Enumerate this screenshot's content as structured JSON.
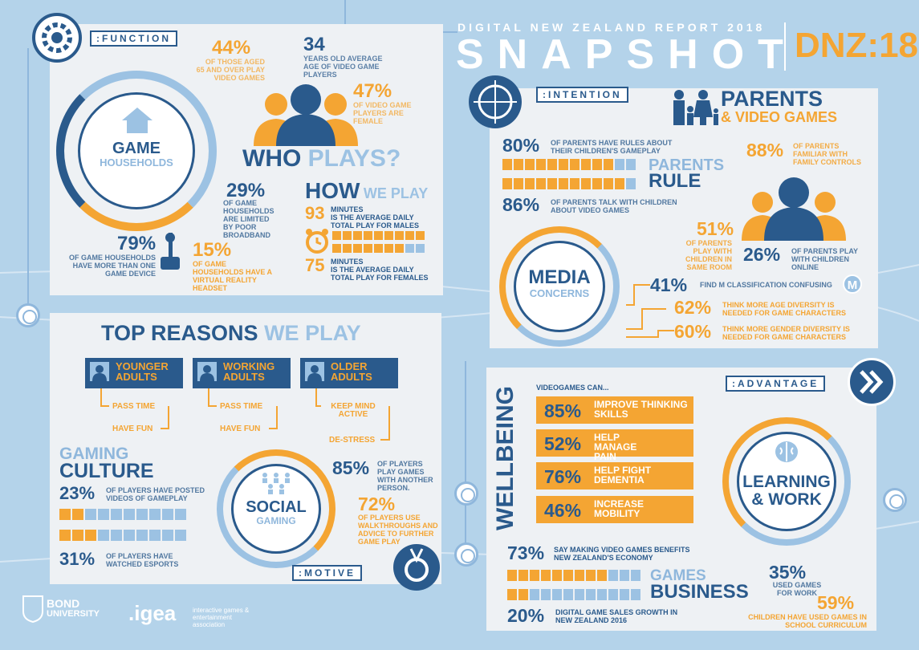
{
  "header": {
    "subtitle": "DIGITAL NEW ZEALAND REPORT 2018",
    "title": "SNAPSHOT",
    "code": "DNZ:18"
  },
  "function": {
    "label": ":FUNCTION",
    "ring_title": "GAME",
    "ring_sub": "HOUSEHOLDS",
    "stat_44": "44%",
    "text_44": "OF THOSE AGED 65 AND OVER PLAY VIDEO GAMES",
    "stat_34": "34",
    "text_34": "YEARS OLD AVERAGE AGE OF VIDEO GAME PLAYERS",
    "stat_47": "47%",
    "text_47": "OF VIDEO GAME PLAYERS ARE FEMALE",
    "who_1": "WHO",
    "who_2": "PLAYS?",
    "stat_29": "29%",
    "text_29": "OF GAME HOUSEHOLDS ARE LIMITED BY POOR BROADBAND",
    "stat_79": "79%",
    "text_79": "OF GAME HOUSEHOLDS HAVE MORE THAN ONE GAME DEVICE",
    "stat_15": "15%",
    "text_15": "OF GAME HOUSEHOLDS HAVE A VIRTUAL REALITY HEADSET",
    "how_1": "HOW",
    "how_2": "WE PLAY",
    "stat_93": "93",
    "text_93a": "MINUTES",
    "text_93b": "IS THE AVERAGE DAILY TOTAL PLAY FOR MALES",
    "stat_75": "75",
    "text_75a": "MINUTES",
    "text_75b": "IS THE AVERAGE DAILY TOTAL PLAY FOR FEMALES"
  },
  "motive": {
    "label": ":MOTIVE",
    "title_1": "TOP REASONS",
    "title_2": "WE PLAY",
    "groups": [
      {
        "title_1": "YOUNGER",
        "title_2": "ADULTS",
        "r1": "PASS TIME",
        "r2": "HAVE FUN"
      },
      {
        "title_1": "WORKING",
        "title_2": "ADULTS",
        "r1": "PASS TIME",
        "r2": "HAVE FUN"
      },
      {
        "title_1": "OLDER",
        "title_2": "ADULTS",
        "r1": "KEEP MIND ACTIVE",
        "r2": "DE-STRESS"
      }
    ],
    "culture_1": "GAMING",
    "culture_2": "CULTURE",
    "stat_23": "23%",
    "text_23": "OF PLAYERS HAVE POSTED VIDEOS OF GAMEPLAY",
    "stat_31": "31%",
    "text_31": "OF PLAYERS HAVE WATCHED ESPORTS",
    "social_1": "SOCIAL",
    "social_2": "GAMING",
    "stat_85": "85%",
    "text_85": "OF PLAYERS PLAY GAMES WITH ANOTHER PERSON.",
    "stat_72": "72%",
    "text_72": "OF PLAYERS USE WALKTHROUGHS AND ADVICE TO FURTHER GAME PLAY"
  },
  "intention": {
    "label": ":INTENTION",
    "parents_1": "PARENTS",
    "parents_2": "& VIDEO GAMES",
    "stat_80": "80%",
    "text_80": "OF PARENTS HAVE RULES ABOUT THEIR CHILDREN'S GAMEPLAY",
    "rule_1": "PARENTS",
    "rule_2": "RULE",
    "stat_86": "86%",
    "text_86": "OF PARENTS TALK WITH CHILDREN ABOUT VIDEO GAMES",
    "stat_88": "88%",
    "text_88": "OF PARENTS FAMILIAR WITH FAMILY CONTROLS",
    "stat_51": "51%",
    "text_51": "OF PARENTS PLAY WITH CHILDREN IN SAME ROOM",
    "stat_26": "26%",
    "text_26": "OF PARENTS PLAY WITH CHILDREN ONLINE",
    "media_1": "MEDIA",
    "media_2": "CONCERNS",
    "stat_41": "41%",
    "text_41": "FIND M CLASSIFICATION CONFUSING",
    "m_badge": "M",
    "stat_62": "62%",
    "text_62": "THINK MORE AGE DIVERSITY IS NEEDED FOR GAME CHARACTERS",
    "stat_60": "60%",
    "text_60": "THINK MORE GENDER DIVERSITY IS NEEDED FOR GAME CHARACTERS"
  },
  "advantage": {
    "label": ":ADVANTAGE",
    "wellbeing": "WELLBEING",
    "can": "VIDEOGAMES CAN...",
    "rows": [
      {
        "pct": "85%",
        "text": "IMPROVE THINKING SKILLS"
      },
      {
        "pct": "52%",
        "text": "HELP MANAGE PAIN"
      },
      {
        "pct": "76%",
        "text": "HELP FIGHT DEMENTIA"
      },
      {
        "pct": "46%",
        "text": "INCREASE MOBILITY"
      }
    ],
    "learn_1": "LEARNING",
    "learn_2": "& WORK",
    "stat_73": "73%",
    "text_73": "SAY MAKING VIDEO GAMES BENEFITS NEW ZEALAND'S ECONOMY",
    "biz_1": "GAMES",
    "biz_2": "BUSINESS",
    "stat_20": "20%",
    "text_20": "DIGITAL GAME SALES GROWTH IN NEW ZEALAND 2016",
    "stat_35": "35%",
    "text_35": "USED GAMES FOR WORK",
    "stat_59": "59%",
    "text_59": "CHILDREN HAVE USED GAMES IN SCHOOL CURRICULUM"
  },
  "footer": {
    "bond_1": "BOND",
    "bond_2": "UNIVERSITY",
    "igea": ".igea",
    "igea_sub": "interactive games & entertainment association"
  },
  "colors": {
    "navy": "#2a5a8c",
    "orange": "#f4a533",
    "light_blue": "#9cc2e3",
    "panel": "#eef1f4",
    "background": "#b4d3ea"
  },
  "icons": [
    "gear-icon",
    "house-icon",
    "people-icon",
    "joystick-icon",
    "alarm-clock-icon",
    "crosshair-icon",
    "family-icon",
    "person-icon",
    "m-rating-icon",
    "medal-icon",
    "chevron-right-icon",
    "brain-icon",
    "bond-crest-icon"
  ]
}
